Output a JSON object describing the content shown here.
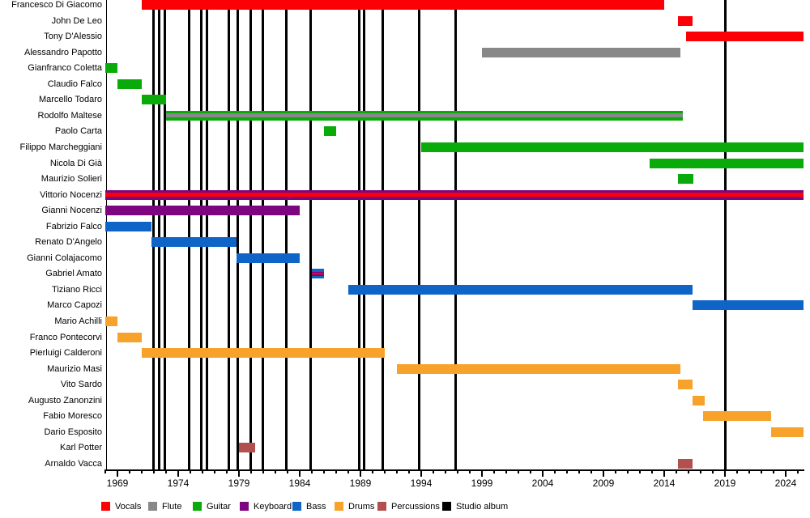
{
  "chart_data": {
    "type": "bar",
    "variant": "band-membership-timeline-gantt",
    "title": "",
    "x_axis": {
      "min": 1968,
      "max": 2025.5,
      "present_end": 2025.45,
      "major_ticks": [
        1969,
        1974,
        1979,
        1984,
        1989,
        1994,
        1999,
        2004,
        2009,
        2014,
        2019,
        2024
      ],
      "minor_tick_every": 1,
      "grid": false
    },
    "legend_position": "bottom",
    "legend": [
      {
        "label": "Vocals",
        "color": "#fb0006"
      },
      {
        "label": "Flute",
        "color": "#888888"
      },
      {
        "label": "Guitar",
        "color": "#0aaa0a"
      },
      {
        "label": "Keyboard",
        "color": "#7d0580"
      },
      {
        "label": "Bass",
        "color": "#0f64c8"
      },
      {
        "label": "Drums",
        "color": "#f7a22b"
      },
      {
        "label": "Percussions",
        "color": "#b25050"
      },
      {
        "label": "Studio album",
        "color": "#000000"
      }
    ],
    "members": [
      {
        "name": "Francesco Di Giacomo",
        "roles": [
          "Vocals"
        ],
        "start": 1971,
        "end": 2014
      },
      {
        "name": "John De Leo",
        "roles": [
          "Vocals"
        ],
        "start": 2015.1,
        "end": 2016.3
      },
      {
        "name": "Tony D'Alessio",
        "roles": [
          "Vocals"
        ],
        "start": 2015.8,
        "end": "present"
      },
      {
        "name": "Alessandro Papotto",
        "roles": [
          "Flute"
        ],
        "start": 1999,
        "end": 2015.3
      },
      {
        "name": "Gianfranco Coletta",
        "roles": [
          "Guitar"
        ],
        "start": 1968,
        "end": 1969
      },
      {
        "name": "Claudio Falco",
        "roles": [
          "Guitar"
        ],
        "start": 1969,
        "end": 1971
      },
      {
        "name": "Marcello Todaro",
        "roles": [
          "Guitar"
        ],
        "start": 1971,
        "end": 1973
      },
      {
        "name": "Rodolfo Maltese",
        "roles": [
          "Guitar",
          "Flute"
        ],
        "start": 1973,
        "end": 2015.5
      },
      {
        "name": "Paolo Carta",
        "roles": [
          "Guitar"
        ],
        "start": 1986,
        "end": 1987
      },
      {
        "name": "Filippo Marcheggiani",
        "roles": [
          "Guitar"
        ],
        "start": 1994,
        "end": "present"
      },
      {
        "name": "Nicola Di Già",
        "roles": [
          "Guitar"
        ],
        "start": 2012.8,
        "end": "present"
      },
      {
        "name": "Maurizio Solieri",
        "roles": [
          "Guitar"
        ],
        "start": 2015.1,
        "end": 2016.4
      },
      {
        "name": "Vittorio Nocenzi",
        "roles": [
          "Keyboard",
          "Vocals"
        ],
        "start": 1968,
        "end": "present"
      },
      {
        "name": "Gianni Nocenzi",
        "roles": [
          "Keyboard"
        ],
        "start": 1968,
        "end": 1984
      },
      {
        "name": "Fabrizio Falco",
        "roles": [
          "Bass"
        ],
        "start": 1968,
        "end": 1971.8
      },
      {
        "name": "Renato D'Angelo",
        "roles": [
          "Bass"
        ],
        "start": 1971.8,
        "end": 1978.8
      },
      {
        "name": "Gianni Colajacomo",
        "roles": [
          "Bass"
        ],
        "start": 1978.8,
        "end": 1984
      },
      {
        "name": "Gabriel Amato",
        "roles": [
          "Bass",
          "Keyboard",
          "Vocals"
        ],
        "start": 1985,
        "end": 1986
      },
      {
        "name": "Tiziano Ricci",
        "roles": [
          "Bass"
        ],
        "start": 1988,
        "end": 2016.3
      },
      {
        "name": "Marco Capozi",
        "roles": [
          "Bass"
        ],
        "start": 2016.3,
        "end": "present"
      },
      {
        "name": "Mario Achilli",
        "roles": [
          "Drums"
        ],
        "start": 1968,
        "end": 1969
      },
      {
        "name": "Franco Pontecorvi",
        "roles": [
          "Drums"
        ],
        "start": 1969,
        "end": 1971
      },
      {
        "name": "Pierluigi Calderoni",
        "roles": [
          "Drums"
        ],
        "start": 1971,
        "end": 1991
      },
      {
        "name": "Maurizio Masi",
        "roles": [
          "Drums"
        ],
        "start": 1992,
        "end": 2015.3
      },
      {
        "name": "Vito Sardo",
        "roles": [
          "Drums"
        ],
        "start": 2015.1,
        "end": 2016.3
      },
      {
        "name": "Augusto Zanonzini",
        "roles": [
          "Drums"
        ],
        "start": 2016.3,
        "end": 2017.3
      },
      {
        "name": "Fabio Moresco",
        "roles": [
          "Drums"
        ],
        "start": 2017.2,
        "end": 2022.8
      },
      {
        "name": "Dario Esposito",
        "roles": [
          "Drums"
        ],
        "start": 2022.8,
        "end": "present"
      },
      {
        "name": "Karl Potter",
        "roles": [
          "Percussions"
        ],
        "start": 1979,
        "end": 1980.3
      },
      {
        "name": "Arnaldo Vacca",
        "roles": [
          "Percussions"
        ],
        "start": 2015.1,
        "end": 2016.3
      }
    ],
    "studio_album_lines": {
      "label": "Studio album",
      "years_approx": [
        1971.95,
        1972.4,
        1972.9,
        1974.9,
        1975.9,
        1976.35,
        1978.15,
        1978.9,
        1979.95,
        1980.95,
        1982.9,
        1984.9,
        1988.9,
        1989.3,
        1990.85,
        1993.8,
        1996.85,
        2019.05
      ],
      "years_nominal": [
        1972,
        1972,
        1973,
        1975,
        1976,
        1976,
        1978,
        1979,
        1980,
        1981,
        1983,
        1985,
        1989,
        1989,
        1991,
        1994,
        1997,
        2019
      ]
    }
  }
}
